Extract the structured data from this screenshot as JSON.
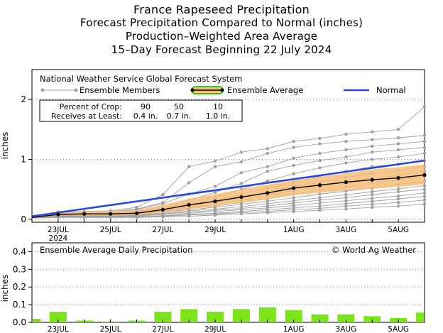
{
  "header": {
    "title": "France Rapeseed Precipitation",
    "subtitle1": "Forecast Precipitation Compared to Normal (inches)",
    "subtitle2": "Production–Weighted Area Average",
    "subtitle3": "15–Day Forecast Beginning 22 July 2024"
  },
  "main_panel": {
    "legend": {
      "system": "National Weather Service Global Forecast System",
      "members": "Ensemble Members",
      "average": "Ensemble Average",
      "normal": "Normal"
    },
    "crop_table": {
      "row1_label": "Percent of Crop:",
      "row2_label": "Receives at Least:",
      "percents": [
        "90",
        "50",
        "10"
      ],
      "amounts": [
        "0.4 in.",
        "0.7 in.",
        "1.0 in."
      ]
    }
  },
  "daily_panel": {
    "title": "Ensemble Average Daily Precipitation",
    "credit": "© World Ag Weather"
  },
  "colors": {
    "normal": "#2546e0",
    "average": "#000000",
    "spread": "#f5be7a",
    "members": "#a0a0a0",
    "bars": "#7fe31c",
    "legend_avg_fill": "#f5be7a",
    "legend_avg_outline": "#3cc81e"
  },
  "chart_data": [
    {
      "type": "line",
      "ylabel": "inches",
      "ylim": [
        -0.05,
        2.5
      ],
      "xlim": [
        0,
        15
      ],
      "yticks": [
        0,
        1,
        2
      ],
      "xticks": [
        {
          "x": 1,
          "label": "23JUL",
          "sub": "2024"
        },
        {
          "x": 3,
          "label": "25JUL"
        },
        {
          "x": 5,
          "label": "27JUL"
        },
        {
          "x": 7,
          "label": "29JUL"
        },
        {
          "x": 10,
          "label": "1AUG"
        },
        {
          "x": 12,
          "label": "3AUG"
        },
        {
          "x": 14,
          "label": "5AUG"
        }
      ],
      "grid": "horizontal dotted",
      "legend_position": "top",
      "series": [
        {
          "name": "Normal",
          "x": [
            0,
            15
          ],
          "values": [
            0.05,
            0.98
          ]
        },
        {
          "name": "Ensemble Average",
          "x": [
            0,
            1,
            2,
            3,
            4,
            5,
            6,
            7,
            8,
            9,
            10,
            11,
            12,
            13,
            14,
            15
          ],
          "values": [
            0.03,
            0.08,
            0.09,
            0.09,
            0.1,
            0.16,
            0.24,
            0.3,
            0.37,
            0.44,
            0.52,
            0.57,
            0.62,
            0.66,
            0.69,
            0.74
          ]
        },
        {
          "name": "Ensemble Spread Upper",
          "x": [
            0,
            1,
            2,
            3,
            4,
            5,
            6,
            7,
            8,
            9,
            10,
            11,
            12,
            13,
            14,
            15
          ],
          "values": [
            0.04,
            0.11,
            0.13,
            0.14,
            0.15,
            0.24,
            0.34,
            0.42,
            0.5,
            0.58,
            0.65,
            0.71,
            0.77,
            0.83,
            0.87,
            0.92
          ]
        },
        {
          "name": "Ensemble Spread Lower",
          "x": [
            0,
            1,
            2,
            3,
            4,
            5,
            6,
            7,
            8,
            9,
            10,
            11,
            12,
            13,
            14,
            15
          ],
          "values": [
            0.02,
            0.06,
            0.06,
            0.06,
            0.07,
            0.11,
            0.17,
            0.22,
            0.28,
            0.33,
            0.4,
            0.44,
            0.48,
            0.51,
            0.54,
            0.58
          ]
        }
      ],
      "members": [
        [
          0.02,
          0.12,
          0.13,
          0.14,
          0.2,
          0.41,
          0.88,
          0.97,
          1.12,
          1.18,
          1.3,
          1.35,
          1.42,
          1.46,
          1.5,
          1.88
        ],
        [
          0.02,
          0.1,
          0.12,
          0.13,
          0.17,
          0.28,
          0.61,
          0.88,
          0.96,
          1.1,
          1.2,
          1.26,
          1.3,
          1.33,
          1.36,
          1.4
        ],
        [
          0.02,
          0.11,
          0.12,
          0.13,
          0.16,
          0.26,
          0.42,
          0.55,
          0.78,
          0.88,
          1.02,
          1.1,
          1.16,
          1.22,
          1.26,
          1.3
        ],
        [
          0.02,
          0.09,
          0.1,
          0.11,
          0.14,
          0.2,
          0.32,
          0.45,
          0.6,
          0.8,
          0.9,
          0.98,
          1.04,
          1.12,
          1.16,
          1.2
        ],
        [
          0.02,
          0.09,
          0.1,
          0.11,
          0.13,
          0.19,
          0.28,
          0.37,
          0.5,
          0.64,
          0.76,
          0.86,
          0.94,
          1.0,
          1.04,
          1.1
        ],
        [
          0.02,
          0.08,
          0.09,
          0.1,
          0.12,
          0.17,
          0.24,
          0.31,
          0.42,
          0.52,
          0.62,
          0.72,
          0.8,
          0.88,
          0.92,
          0.98
        ],
        [
          0.02,
          0.08,
          0.09,
          0.1,
          0.11,
          0.16,
          0.22,
          0.28,
          0.36,
          0.44,
          0.55,
          0.62,
          0.7,
          0.76,
          0.82,
          0.88
        ],
        [
          0.02,
          0.07,
          0.08,
          0.09,
          0.1,
          0.14,
          0.2,
          0.25,
          0.32,
          0.4,
          0.48,
          0.55,
          0.62,
          0.68,
          0.74,
          0.8
        ],
        [
          0.02,
          0.07,
          0.08,
          0.08,
          0.09,
          0.13,
          0.18,
          0.22,
          0.28,
          0.34,
          0.42,
          0.48,
          0.54,
          0.6,
          0.66,
          0.72
        ],
        [
          0.02,
          0.06,
          0.07,
          0.07,
          0.08,
          0.12,
          0.16,
          0.2,
          0.25,
          0.3,
          0.36,
          0.42,
          0.47,
          0.52,
          0.58,
          0.64
        ],
        [
          0.02,
          0.06,
          0.06,
          0.06,
          0.07,
          0.1,
          0.14,
          0.17,
          0.21,
          0.26,
          0.31,
          0.36,
          0.41,
          0.46,
          0.51,
          0.56
        ],
        [
          0.02,
          0.05,
          0.05,
          0.05,
          0.06,
          0.09,
          0.12,
          0.15,
          0.18,
          0.22,
          0.27,
          0.32,
          0.36,
          0.41,
          0.46,
          0.5
        ],
        [
          0.02,
          0.05,
          0.05,
          0.05,
          0.05,
          0.08,
          0.1,
          0.13,
          0.16,
          0.19,
          0.23,
          0.27,
          0.31,
          0.35,
          0.39,
          0.44
        ],
        [
          0.02,
          0.04,
          0.04,
          0.04,
          0.04,
          0.06,
          0.08,
          0.1,
          0.13,
          0.16,
          0.19,
          0.22,
          0.26,
          0.3,
          0.34,
          0.38
        ],
        [
          0.02,
          0.04,
          0.04,
          0.04,
          0.04,
          0.05,
          0.07,
          0.09,
          0.11,
          0.13,
          0.16,
          0.18,
          0.22,
          0.25,
          0.28,
          0.32
        ],
        [
          0.02,
          0.03,
          0.03,
          0.03,
          0.03,
          0.04,
          0.05,
          0.07,
          0.09,
          0.11,
          0.13,
          0.15,
          0.17,
          0.2,
          0.22,
          0.25
        ]
      ]
    },
    {
      "type": "bar",
      "title": "Ensemble Average Daily Precipitation",
      "ylabel": "inches",
      "ylim": [
        0,
        0.45
      ],
      "yticks": [
        0.0,
        0.1,
        0.2,
        0.3,
        0.4
      ],
      "xticks": [
        {
          "x": 1,
          "label": "23JUL"
        },
        {
          "x": 3,
          "label": "25JUL"
        },
        {
          "x": 5,
          "label": "27JUL"
        },
        {
          "x": 7,
          "label": "29JUL"
        },
        {
          "x": 10,
          "label": "1AUG"
        },
        {
          "x": 12,
          "label": "3AUG"
        },
        {
          "x": 14,
          "label": "5AUG"
        }
      ],
      "x": [
        0,
        1,
        2,
        3,
        4,
        5,
        6,
        7,
        8,
        9,
        10,
        11,
        12,
        13,
        14,
        15
      ],
      "values": [
        0.02,
        0.06,
        0.01,
        0.005,
        0.01,
        0.06,
        0.075,
        0.06,
        0.075,
        0.085,
        0.07,
        0.045,
        0.045,
        0.035,
        0.025,
        0.055
      ]
    }
  ]
}
